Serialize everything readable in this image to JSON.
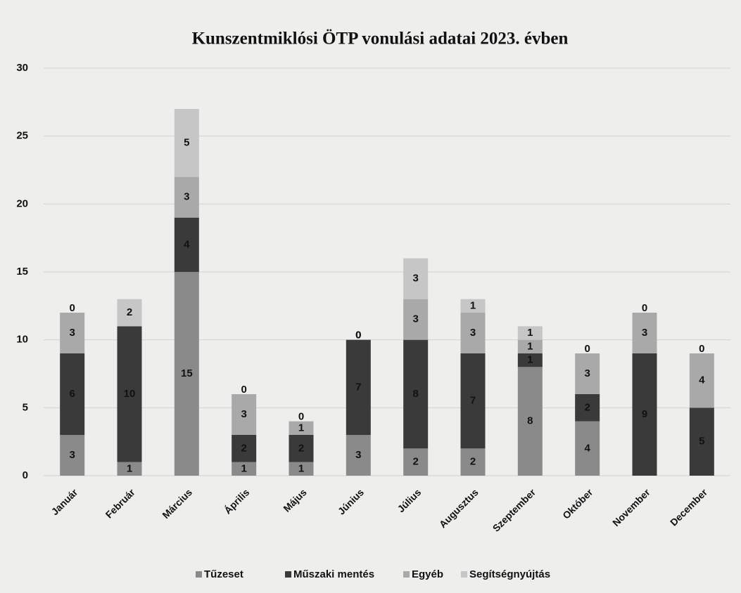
{
  "chart_data": {
    "type": "stacked_bar",
    "title": "Kunszentmiklósi ÖTP vonulási adatai 2023. évben",
    "categories": [
      "Január",
      "Február",
      "Március",
      "Április",
      "Május",
      "Június",
      "Július",
      "Augusztus",
      "Szeptember",
      "Október",
      "November",
      "December"
    ],
    "series": [
      {
        "name": "Tűzeset",
        "color": "#8a8a8a",
        "values": [
          3,
          1,
          15,
          1,
          1,
          3,
          2,
          2,
          8,
          4,
          0,
          0
        ]
      },
      {
        "name": "Műszaki mentés",
        "color": "#3a3a3a",
        "values": [
          6,
          10,
          4,
          2,
          2,
          7,
          8,
          7,
          1,
          2,
          9,
          5
        ]
      },
      {
        "name": "Egyéb",
        "color": "#a9a9a9",
        "values": [
          3,
          0,
          3,
          3,
          1,
          0,
          3,
          3,
          1,
          3,
          3,
          4
        ]
      },
      {
        "name": "Segítségnyújtás",
        "color": "#c6c6c6",
        "values": [
          0,
          2,
          5,
          0,
          0,
          0,
          3,
          1,
          1,
          0,
          0,
          0
        ]
      }
    ],
    "ylim": [
      0,
      30
    ],
    "yticks": [
      0,
      5,
      10,
      15,
      20,
      25,
      30
    ],
    "grid": true,
    "legend": "bottom"
  }
}
